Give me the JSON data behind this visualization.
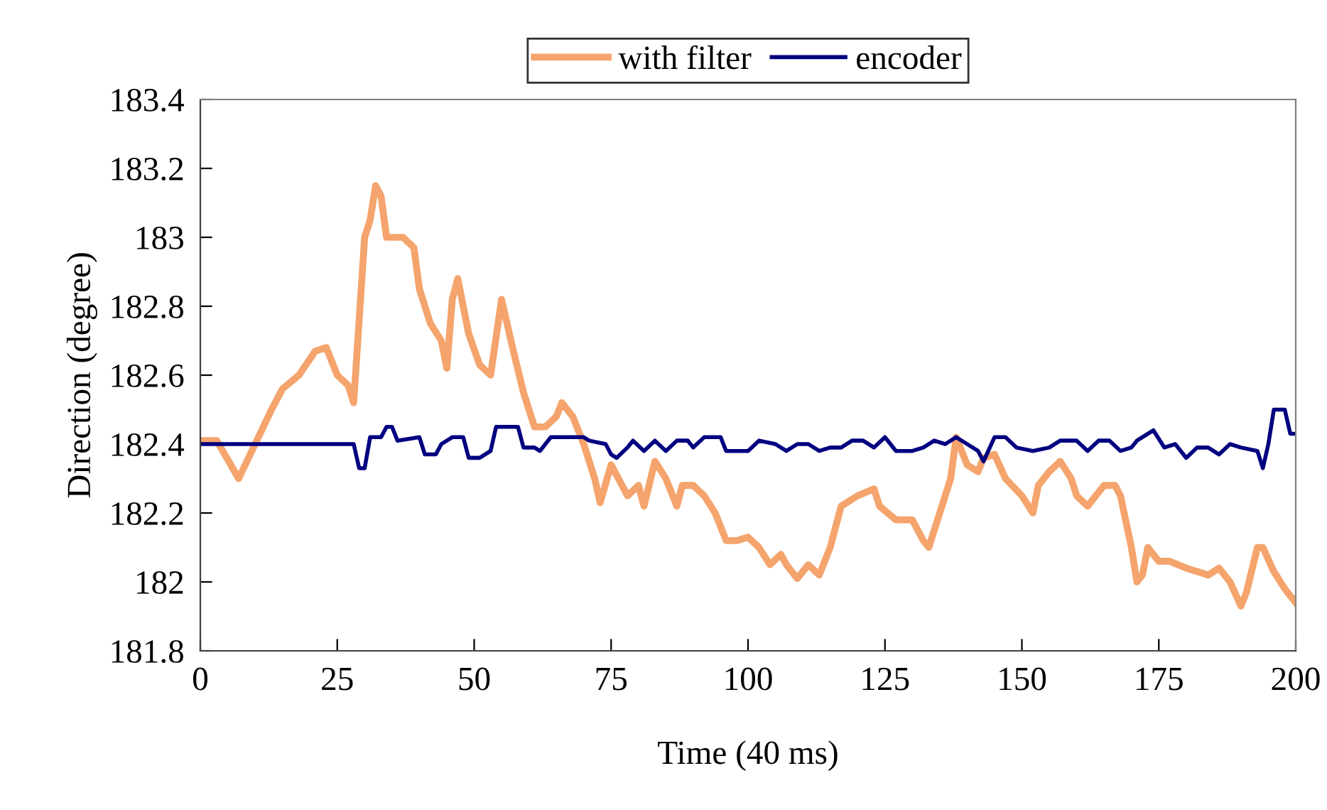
{
  "chart_data": {
    "type": "line",
    "xlabel": "Time (40 ms)",
    "ylabel": "Direction (degree)",
    "xlim": [
      0,
      200
    ],
    "xticks": [
      0,
      25,
      50,
      75,
      100,
      125,
      150,
      175,
      200
    ],
    "ylim": [
      181.8,
      183.4
    ],
    "yticks": [
      181.8,
      182,
      182.2,
      182.4,
      182.6,
      182.8,
      183,
      183.2,
      183.4
    ],
    "grid": false,
    "legend": "top",
    "marker": "none",
    "line_style": "solid",
    "series": [
      {
        "name": "with filter",
        "color": "#f4a46c",
        "x": [
          0,
          3,
          7,
          10,
          13,
          15,
          18,
          21,
          23,
          25,
          27,
          28,
          30,
          31,
          32,
          33,
          34,
          37,
          39,
          40,
          42,
          44,
          45,
          46,
          47,
          49,
          51,
          53,
          55,
          57,
          59,
          61,
          63,
          65,
          66,
          68,
          70,
          72,
          73,
          75,
          78,
          80,
          81,
          83,
          85,
          87,
          88,
          90,
          92,
          94,
          96,
          98,
          100,
          102,
          104,
          106,
          107,
          108,
          109,
          111,
          113,
          115,
          117,
          120,
          123,
          124,
          127,
          130,
          132,
          133,
          135,
          137,
          138,
          140,
          142,
          143,
          145,
          147,
          150,
          152,
          153,
          155,
          157,
          159,
          160,
          162,
          163,
          165,
          167,
          168,
          170,
          171,
          172,
          173,
          175,
          177,
          180,
          182,
          184,
          186,
          188,
          190,
          191,
          193,
          194,
          196,
          198,
          200
        ],
        "values": [
          182.41,
          182.41,
          182.3,
          182.4,
          182.5,
          182.56,
          182.6,
          182.67,
          182.68,
          182.6,
          182.57,
          182.52,
          183.0,
          183.05,
          183.15,
          183.12,
          183.0,
          183.0,
          182.97,
          182.85,
          182.75,
          182.7,
          182.62,
          182.82,
          182.88,
          182.72,
          182.63,
          182.6,
          182.82,
          182.68,
          182.55,
          182.45,
          182.45,
          182.48,
          182.52,
          182.48,
          182.4,
          182.3,
          182.23,
          182.34,
          182.25,
          182.28,
          182.22,
          182.35,
          182.3,
          182.22,
          182.28,
          182.28,
          182.25,
          182.2,
          182.12,
          182.12,
          182.13,
          182.1,
          182.05,
          182.08,
          182.05,
          182.03,
          182.01,
          182.05,
          182.02,
          182.1,
          182.22,
          182.25,
          182.27,
          182.22,
          182.18,
          182.18,
          182.12,
          182.1,
          182.2,
          182.3,
          182.42,
          182.34,
          182.32,
          182.36,
          182.37,
          182.3,
          182.25,
          182.2,
          182.28,
          182.32,
          182.35,
          182.3,
          182.25,
          182.22,
          182.24,
          182.28,
          182.28,
          182.25,
          182.1,
          182.0,
          182.02,
          182.1,
          182.06,
          182.06,
          182.04,
          182.03,
          182.02,
          182.04,
          182.0,
          181.93,
          181.97,
          182.1,
          182.1,
          182.03,
          181.98,
          181.94
        ]
      },
      {
        "name": "encoder",
        "color": "#000080",
        "x": [
          0,
          28,
          29,
          30,
          31,
          33,
          34,
          35,
          36,
          40,
          41,
          43,
          44,
          46,
          48,
          49,
          51,
          53,
          54,
          58,
          59,
          61,
          62,
          64,
          70,
          71,
          74,
          75,
          76,
          78,
          79,
          81,
          83,
          85,
          87,
          89,
          90,
          92,
          95,
          96,
          100,
          102,
          105,
          107,
          109,
          111,
          113,
          115,
          117,
          119,
          121,
          123,
          125,
          127,
          130,
          132,
          134,
          136,
          138,
          140,
          142,
          143,
          145,
          147,
          149,
          152,
          155,
          157,
          160,
          162,
          164,
          166,
          168,
          170,
          171,
          174,
          176,
          178,
          180,
          182,
          184,
          186,
          188,
          190,
          193,
          194,
          195,
          196,
          198,
          199,
          200
        ],
        "values": [
          182.4,
          182.4,
          182.33,
          182.33,
          182.42,
          182.42,
          182.45,
          182.45,
          182.41,
          182.42,
          182.37,
          182.37,
          182.4,
          182.42,
          182.42,
          182.36,
          182.36,
          182.38,
          182.45,
          182.45,
          182.39,
          182.39,
          182.38,
          182.42,
          182.42,
          182.41,
          182.4,
          182.37,
          182.36,
          182.39,
          182.41,
          182.38,
          182.41,
          182.38,
          182.41,
          182.41,
          182.39,
          182.42,
          182.42,
          182.38,
          182.38,
          182.41,
          182.4,
          182.38,
          182.4,
          182.4,
          182.38,
          182.39,
          182.39,
          182.41,
          182.41,
          182.39,
          182.42,
          182.38,
          182.38,
          182.39,
          182.41,
          182.4,
          182.42,
          182.4,
          182.38,
          182.35,
          182.42,
          182.42,
          182.39,
          182.38,
          182.39,
          182.41,
          182.41,
          182.38,
          182.41,
          182.41,
          182.38,
          182.39,
          182.41,
          182.44,
          182.39,
          182.4,
          182.36,
          182.39,
          182.39,
          182.37,
          182.4,
          182.39,
          182.38,
          182.33,
          182.4,
          182.5,
          182.5,
          182.43,
          182.43
        ]
      }
    ]
  }
}
